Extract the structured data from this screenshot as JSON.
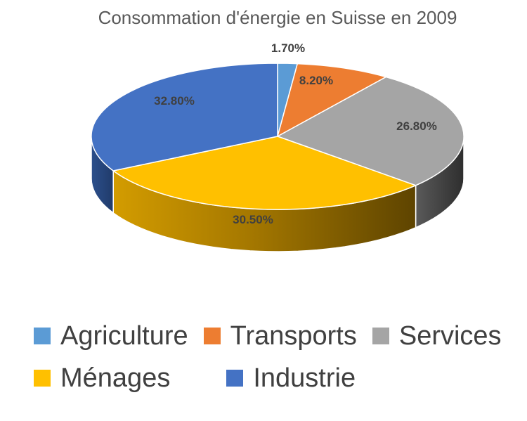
{
  "chart_data": {
    "type": "pie",
    "title": "Consommation d'énergie en Suisse en 2009",
    "categories": [
      "Agriculture",
      "Transports",
      "Services",
      "Ménages",
      "Industrie"
    ],
    "values": [
      1.7,
      8.2,
      26.8,
      30.5,
      32.8
    ],
    "labels": [
      "1.70%",
      "8.20%",
      "26.80%",
      "30.50%",
      "32.80%"
    ],
    "colors": [
      "#5B9BD5",
      "#ED7D31",
      "#A5A5A5",
      "#FFC000",
      "#4472C4"
    ],
    "legend_position": "bottom",
    "style": "3d"
  }
}
